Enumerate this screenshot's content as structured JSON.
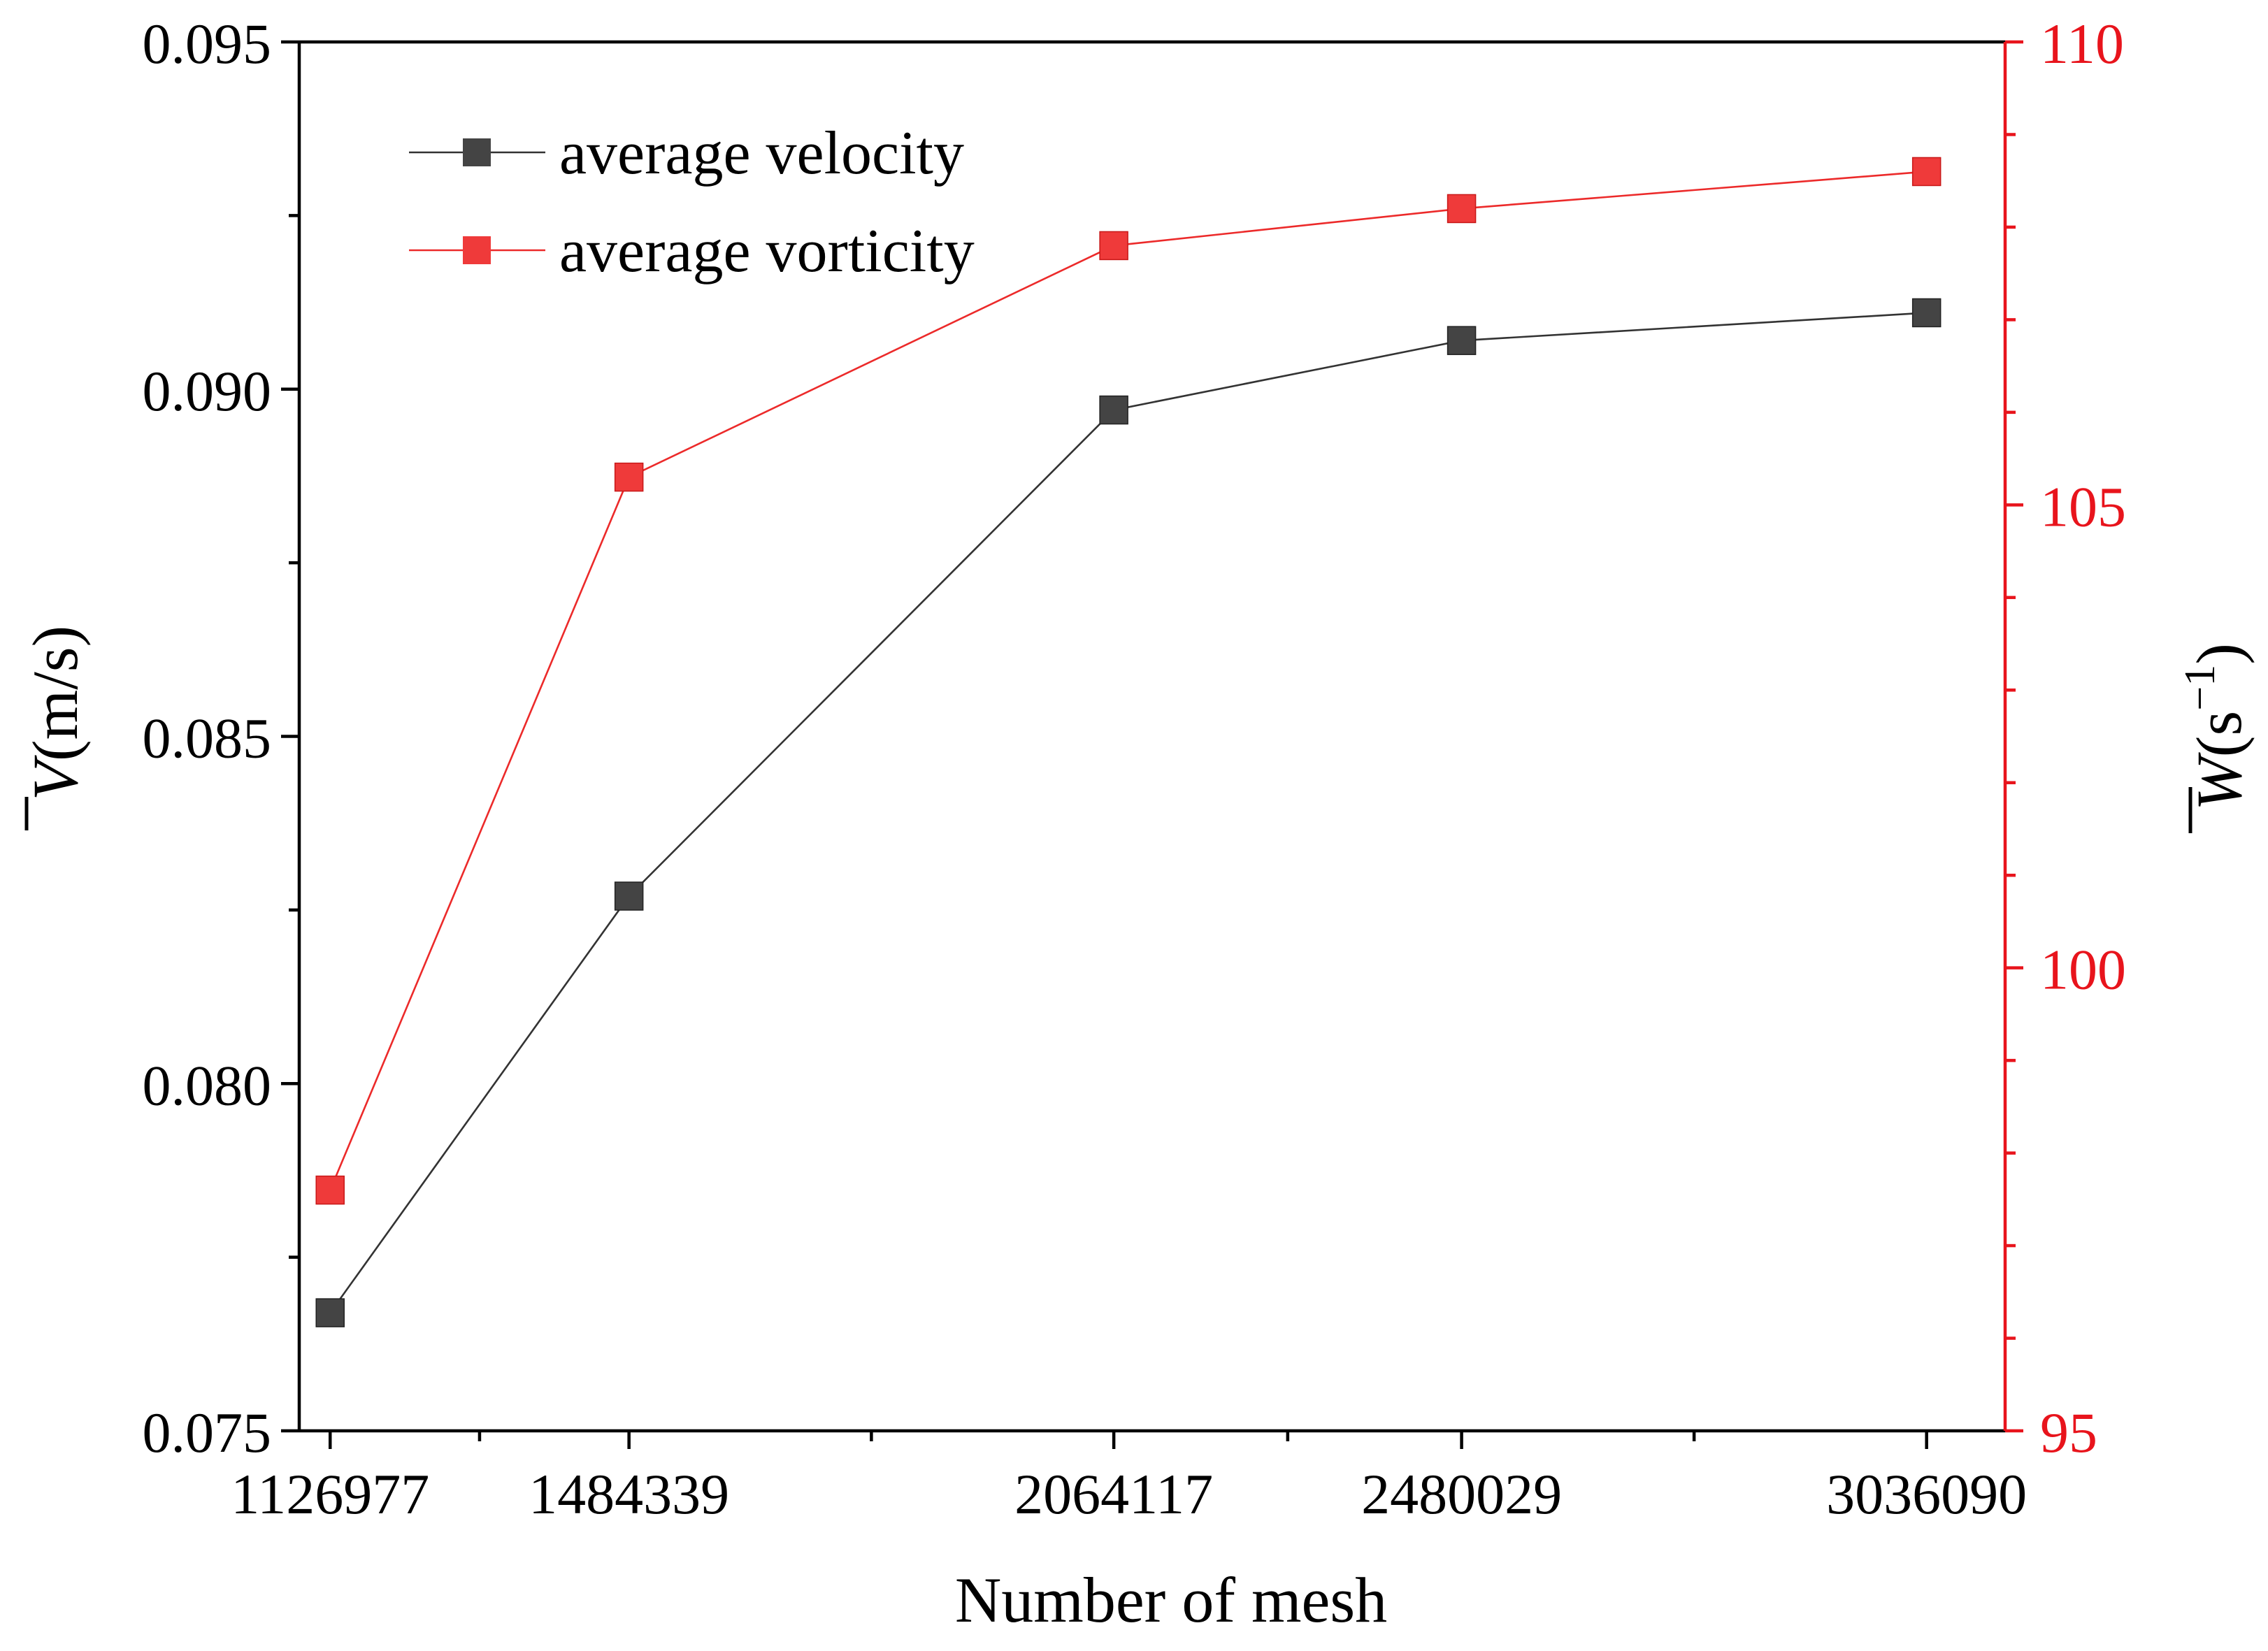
{
  "colors": {
    "left_axis": "#000000",
    "right_axis": "#e8141c",
    "velocity_line": "#333333",
    "velocity_marker": "#444444",
    "vorticity_line": "#ec2a2a",
    "vorticity_marker": "#ef3a3a"
  },
  "chart_data": {
    "type": "line",
    "title": "",
    "xlabel": "Number of mesh",
    "x_categories": [
      "1126977",
      "1484339",
      "2064117",
      "2480029",
      "3036090"
    ],
    "x_values": [
      1126977,
      1484339,
      2064117,
      2480029,
      3036090
    ],
    "xlim": [
      1090000,
      3130000
    ],
    "y_left": {
      "symbol": "V",
      "unit": "(m/s)",
      "ylim": [
        0.075,
        0.095
      ],
      "major_ticks": [
        "0.075",
        "0.080",
        "0.085",
        "0.090",
        "0.095"
      ],
      "major_values": [
        0.075,
        0.08,
        0.085,
        0.09,
        0.095
      ],
      "minor_values": [
        0.0775,
        0.0825,
        0.0875,
        0.0925
      ]
    },
    "y_right": {
      "symbol": "W",
      "unit_open": "(s",
      "unit_exp": "−1",
      "unit_close": ")",
      "ylim": [
        95,
        110
      ],
      "major_ticks": [
        "95",
        "100",
        "105",
        "110"
      ],
      "major_values": [
        95,
        100,
        105,
        110
      ],
      "minor_values": [
        96,
        97,
        98,
        99,
        101,
        102,
        103,
        104,
        106,
        107,
        108,
        109
      ]
    },
    "series": [
      {
        "name": "average velocity",
        "axis": "left",
        "color_key": "velocity",
        "values": [
          0.0767,
          0.0827,
          0.0897,
          0.0907,
          0.0911
        ]
      },
      {
        "name": "average vorticity",
        "axis": "right",
        "color_key": "vorticity",
        "values": [
          97.6,
          105.3,
          107.8,
          108.2,
          108.6
        ]
      }
    ],
    "legend_position": "top-left"
  }
}
